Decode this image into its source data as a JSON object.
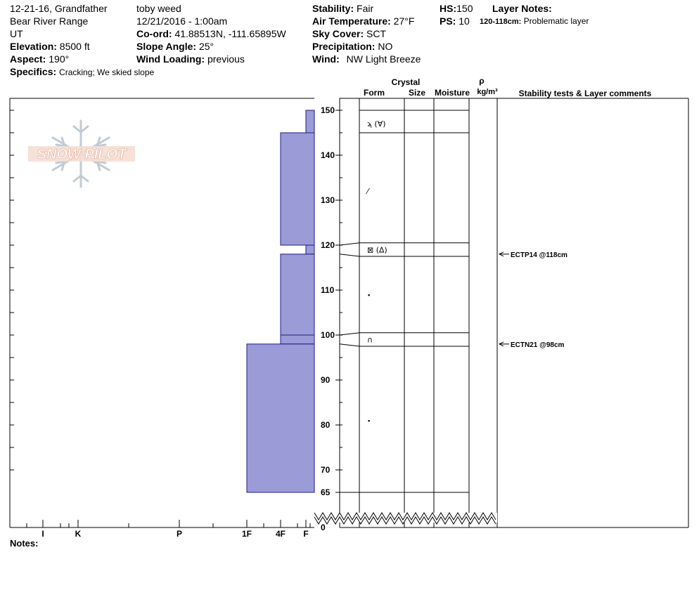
{
  "header": {
    "title": "12-21-16, Grandfather",
    "range": "Bear River Range",
    "state": "UT",
    "elevation_label": "Elevation:",
    "elevation_value": "8500 ft",
    "aspect_label": "Aspect:",
    "aspect_value": "190°",
    "specifics_label": "Specifics:",
    "specifics_value": "Cracking;  We skied slope",
    "observer": "toby weed",
    "datetime": "12/21/2016 - 1:00am",
    "coord_label": "Co-ord:",
    "coord_value": "41.88513N, -111.65895W",
    "slope_label": "Slope Angle:",
    "slope_value": "25°",
    "wind_loading_label": "Wind Loading:",
    "wind_loading_value": "previous",
    "stability_label": "Stability:",
    "stability_value": "Fair",
    "air_temp_label": "Air Temperature:",
    "air_temp_value": "27°F",
    "sky_label": "Sky Cover:",
    "sky_value": "SCT",
    "precip_label": "Precipitation:",
    "precip_value": "NO",
    "wind_label": "Wind:",
    "wind_value": "NW Light Breeze",
    "hs_label": "HS:",
    "hs_value": "150",
    "ps_label": "PS:",
    "ps_value": "10",
    "layer_notes_label": "Layer Notes:",
    "layer_note_range": "120-118cm:",
    "layer_note_text": "Problematic layer"
  },
  "columns": {
    "crystal": "Crystal",
    "form": "Form",
    "size": "Size",
    "moisture": "Moisture",
    "rho": "ρ",
    "density_unit": "kg/m³",
    "comments": "Stability tests & Layer comments"
  },
  "logo_text": "SNOW PILOT",
  "notes_label": "Notes:",
  "chart_data": {
    "type": "bar",
    "orientation": "horizontal",
    "description_axis": "snow depth (cm)",
    "y_ticks": [
      65,
      70,
      80,
      90,
      100,
      110,
      120,
      130,
      140,
      150
    ],
    "y_break_label": "0",
    "ylim": [
      65,
      150
    ],
    "hardness_scale": [
      "I",
      "K",
      "P",
      "1F",
      "4F",
      "F"
    ],
    "hardness_profile": [
      {
        "top": 150,
        "bottom": 145,
        "hardness": "F"
      },
      {
        "top": 145,
        "bottom": 120,
        "hardness": "4F"
      },
      {
        "top": 120,
        "bottom": 118,
        "hardness": "F"
      },
      {
        "top": 118,
        "bottom": 100,
        "hardness": "4F"
      },
      {
        "top": 100,
        "bottom": 98,
        "hardness": "4F"
      },
      {
        "top": 98,
        "bottom": 65,
        "hardness": "1F"
      }
    ],
    "layer_boundaries": [
      150,
      145,
      120.5,
      117.5,
      100.5,
      97.5,
      65
    ],
    "grain_forms": [
      {
        "depth": 147,
        "form": "precipitation particles (rimed)"
      },
      {
        "depth": 132,
        "form": "decomposing fragments"
      },
      {
        "depth": 119,
        "form": "faceted / surface hoar"
      },
      {
        "depth": 109,
        "form": "rounded grains"
      },
      {
        "depth": 99,
        "form": "melt-freeze"
      },
      {
        "depth": 81,
        "form": "rounded grains"
      }
    ],
    "stability_tests": [
      {
        "depth": 118,
        "label": "ECTP14 @118cm"
      },
      {
        "depth": 98,
        "label": "ECTN21 @98cm"
      }
    ]
  }
}
